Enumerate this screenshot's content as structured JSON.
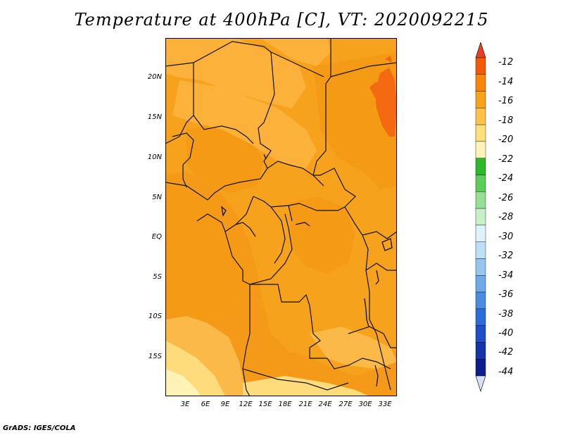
{
  "title": "Temperature at 400hPa [C], VT: 2020092215",
  "credit": "GrADS: IGES/COLA",
  "map": {
    "latitude_labels": [
      "20N",
      "15N",
      "10N",
      "5N",
      "EQ",
      "5S",
      "10S",
      "15S"
    ],
    "longitude_labels": [
      "3E",
      "6E",
      "9E",
      "12E",
      "15E",
      "18E",
      "21E",
      "24E",
      "27E",
      "30E",
      "33E"
    ],
    "region": "Central Africa"
  },
  "colorbar": {
    "labels": [
      "-12",
      "-14",
      "-16",
      "-18",
      "-20",
      "-22",
      "-24",
      "-26",
      "-28",
      "-30",
      "-32",
      "-34",
      "-36",
      "-38",
      "-40",
      "-42",
      "-44"
    ],
    "colors": [
      "#d7e0f7",
      "#0f1d8a",
      "#1434a8",
      "#1f4fc7",
      "#2b6cd8",
      "#4a8ce0",
      "#6ea9e8",
      "#95c6f0",
      "#bde0f8",
      "#dff2fc",
      "#c8f0c8",
      "#96e096",
      "#5ccd5c",
      "#2eb82e",
      "#fff4b8",
      "#ffe07a",
      "#ffc04a",
      "#f9a11a",
      "#f6870b",
      "#f15a07",
      "#e8411f"
    ]
  }
}
